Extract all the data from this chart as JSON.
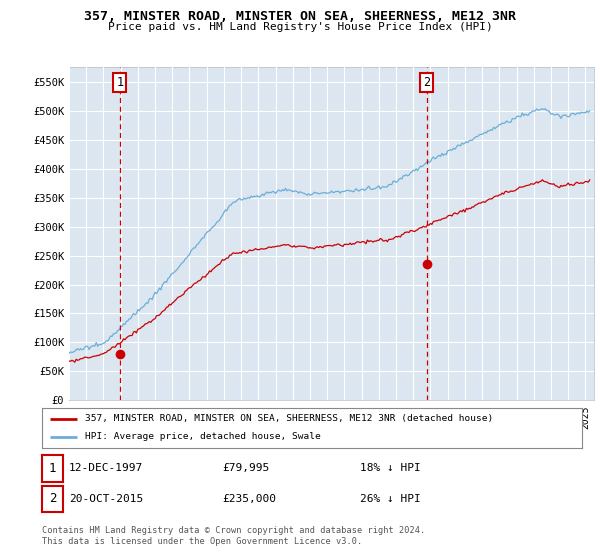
{
  "title": "357, MINSTER ROAD, MINSTER ON SEA, SHEERNESS, ME12 3NR",
  "subtitle": "Price paid vs. HM Land Registry's House Price Index (HPI)",
  "ylim": [
    0,
    575000
  ],
  "xlim_start": 1995.0,
  "xlim_end": 2025.5,
  "hpi_color": "#6baed6",
  "price_color": "#cc0000",
  "background_plot": "#dce6f1",
  "grid_color": "#ffffff",
  "purchase1_x": 1997.95,
  "purchase1_y": 79995,
  "purchase2_x": 2015.79,
  "purchase2_y": 235000,
  "legend_line1": "357, MINSTER ROAD, MINSTER ON SEA, SHEERNESS, ME12 3NR (detached house)",
  "legend_line2": "HPI: Average price, detached house, Swale",
  "note1_date": "12-DEC-1997",
  "note1_price": "£79,995",
  "note1_hpi": "18% ↓ HPI",
  "note2_date": "20-OCT-2015",
  "note2_price": "£235,000",
  "note2_hpi": "26% ↓ HPI",
  "footer": "Contains HM Land Registry data © Crown copyright and database right 2024.\nThis data is licensed under the Open Government Licence v3.0."
}
